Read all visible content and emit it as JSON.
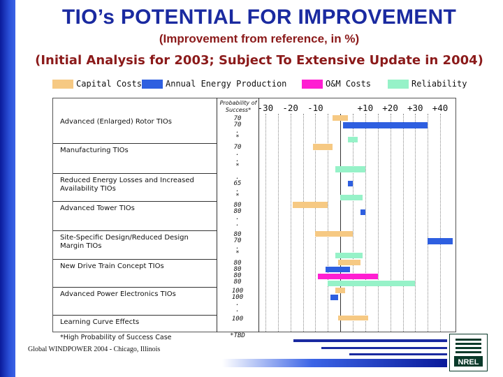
{
  "title": "TIO’s POTENTIAL FOR IMPROVEMENT",
  "subtitle": "(Improvement from reference, in %)",
  "subtitle2": "(Initial Analysis for 2003; Subject To Extensive Update in 2004)",
  "colors": {
    "capital": "#f6c983",
    "energy": "#2e5fe0",
    "om": "#ff1ed2",
    "reliability": "#96f2c8",
    "title": "#1a2aa0",
    "subtitle": "#8b1a1a"
  },
  "legend": [
    {
      "label": "Capital Costs",
      "color": "#f6c983"
    },
    {
      "label": "Annual Energy Production",
      "color": "#2e5fe0"
    },
    {
      "label": "O&M Costs",
      "color": "#ff1ed2"
    },
    {
      "label": "Reliability",
      "color": "#96f2c8"
    }
  ],
  "prob_header": "Probability of Success*",
  "axis_ticks": [
    "-30",
    "-20",
    "-10",
    "+10",
    "+20",
    "+30",
    "+40"
  ],
  "footnote": "*High Probability of Success Case",
  "tbd": "*TBD",
  "footer": "Global WINDPOWER 2004 - Chicago, Illinois",
  "logo_text": "NREL",
  "chart_data": {
    "type": "bar",
    "orientation": "horizontal-range",
    "title": "TIO’s POTENTIAL FOR IMPROVEMENT",
    "subtitle": "(Improvement from reference, in %)",
    "xlabel": "",
    "xlim": [
      -30,
      45
    ],
    "x_ticks": [
      -30,
      -20,
      -10,
      10,
      20,
      30,
      40
    ],
    "grid": true,
    "legend_position": "top",
    "series": [
      {
        "name": "Capital Costs",
        "color": "#f6c983"
      },
      {
        "name": "Annual Energy Production",
        "color": "#2e5fe0"
      },
      {
        "name": "O&M Costs",
        "color": "#ff1ed2"
      },
      {
        "name": "Reliability",
        "color": "#96f2c8"
      }
    ],
    "rows": [
      {
        "label": "Advanced (Enlarged) Rotor TIOs",
        "probabilities": [
          "70",
          "70",
          ".",
          "*"
        ],
        "bars": [
          {
            "series": "Capital Costs",
            "from": -3,
            "to": 3
          },
          {
            "series": "Annual Energy Production",
            "from": 1,
            "to": 35
          },
          {
            "series": "Reliability",
            "from": 3,
            "to": 7
          }
        ]
      },
      {
        "label": "Manufacturing TIOs",
        "probabilities": [
          "70",
          ".",
          ".",
          "*"
        ],
        "bars": [
          {
            "series": "Capital Costs",
            "from": -11,
            "to": -3
          },
          {
            "series": "Reliability",
            "from": -2,
            "to": 10
          }
        ]
      },
      {
        "label": "Reduced Energy Losses and Increased Availability TIOs",
        "probabilities": [
          ".",
          "65",
          ".",
          "*"
        ],
        "bars": [
          {
            "series": "Annual Energy Production",
            "from": 3,
            "to": 5
          },
          {
            "series": "Reliability",
            "from": 0,
            "to": 9
          }
        ]
      },
      {
        "label": "Advanced Tower TIOs",
        "probabilities": [
          "80",
          "80",
          ".",
          "."
        ],
        "bars": [
          {
            "series": "Capital Costs",
            "from": -19,
            "to": -5
          },
          {
            "series": "Annual Energy Production",
            "from": 8,
            "to": 10
          }
        ]
      },
      {
        "label": "Site-Specific Design/Reduced Design Margin TIOs",
        "probabilities": [
          "80",
          "70",
          ".",
          "*"
        ],
        "bars": [
          {
            "series": "Capital Costs",
            "from": -10,
            "to": 5
          },
          {
            "series": "Annual Energy Production",
            "from": 35,
            "to": 45
          },
          {
            "series": "Reliability",
            "from": -2,
            "to": 9
          }
        ]
      },
      {
        "label": "New Drive Train Concept TIOs",
        "probabilities": [
          "80",
          "80",
          "80",
          "80"
        ],
        "bars": [
          {
            "series": "Capital Costs",
            "from": -1,
            "to": 8
          },
          {
            "series": "Annual Energy Production",
            "from": -6,
            "to": 4
          },
          {
            "series": "O&M Costs",
            "from": -9,
            "to": 15
          },
          {
            "series": "Reliability",
            "from": -5,
            "to": 30
          }
        ]
      },
      {
        "label": "Advanced Power Electronics TIOs",
        "probabilities": [
          "100",
          "100",
          ".",
          "."
        ],
        "bars": [
          {
            "series": "Capital Costs",
            "from": -2,
            "to": 2
          },
          {
            "series": "Annual Energy Production",
            "from": -4,
            "to": -1
          }
        ]
      },
      {
        "label": "Learning Curve Effects",
        "probabilities": [
          "100"
        ],
        "bars": [
          {
            "series": "Capital Costs",
            "from": -1,
            "to": 11
          }
        ]
      }
    ]
  }
}
